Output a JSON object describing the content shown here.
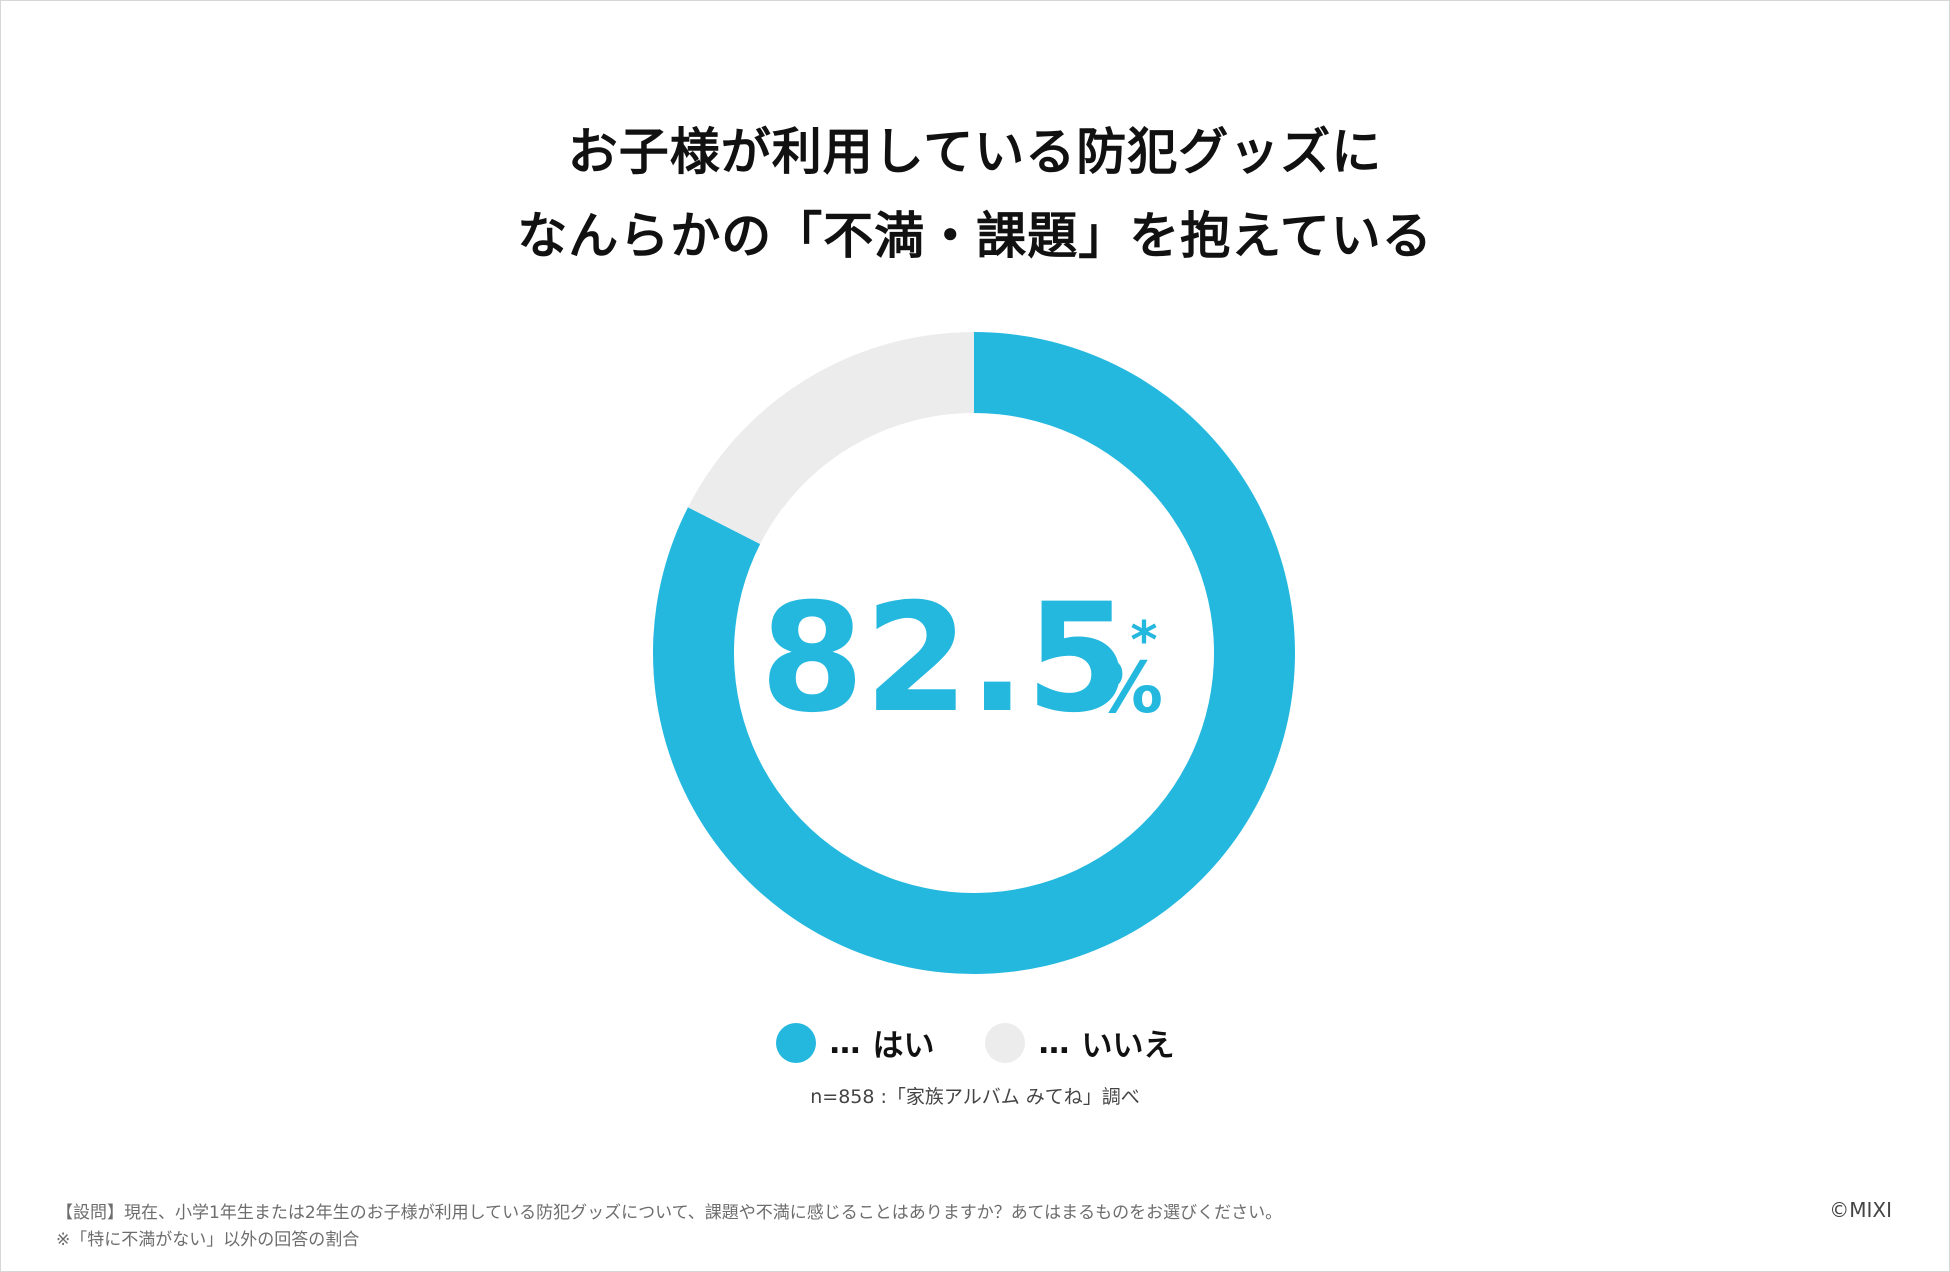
{
  "colors": {
    "yes": "#24b8df",
    "no": "#ececec",
    "text": "#111111"
  },
  "chart_data": {
    "type": "pie",
    "title_lines": [
      "お子様が利用している防犯グッズに",
      "なんらかの「不満・課題」を抱えている"
    ],
    "categories": [
      "はい",
      "いいえ"
    ],
    "values": [
      82.5,
      17.5
    ],
    "unit": "%",
    "center_label": {
      "value": "82.5",
      "unit": "%",
      "mark": "*"
    },
    "legend": [
      {
        "prefix": "…",
        "label": "はい"
      },
      {
        "prefix": "…",
        "label": "いいえ"
      }
    ],
    "legend_position": "bottom"
  },
  "note": "n=858 :「家族アルバム みてね」調べ",
  "footer": {
    "question": "【設問】現在、小学1年生または2年生のお子様が利用している防犯グッズについて、課題や不満に感じることはありますか？あてはまるものをお選びください。",
    "remark": "※「特に不満がない」以外の回答の割合"
  },
  "credit": "©MIXI"
}
